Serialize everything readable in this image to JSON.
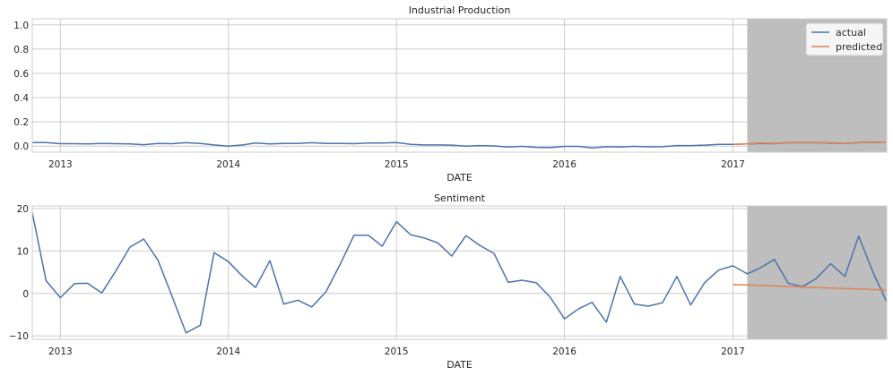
{
  "chart_data": [
    {
      "type": "line",
      "title": "Industrial Production",
      "xlabel": "DATE",
      "ylabel": "",
      "xlim": [
        "2012-11-01",
        "2017-12-01"
      ],
      "ylim": [
        -0.05,
        1.05
      ],
      "x_ticks": [
        "2013",
        "2014",
        "2015",
        "2016",
        "2017"
      ],
      "y_ticks": [
        "0.0",
        "0.2",
        "0.4",
        "0.6",
        "0.8",
        "1.0"
      ],
      "grid": true,
      "legend": "top-right",
      "shaded_region": {
        "start": "2017-02-01",
        "end": "2017-12-01",
        "color": "#bebebe"
      },
      "series": [
        {
          "name": "actual",
          "color": "#4c72b0",
          "points": [
            [
              "2012-11-01",
              0.03
            ],
            [
              "2012-12-01",
              0.03
            ],
            [
              "2013-01-01",
              0.02
            ],
            [
              "2013-02-01",
              0.02
            ],
            [
              "2013-03-01",
              0.018
            ],
            [
              "2013-04-01",
              0.022
            ],
            [
              "2013-05-01",
              0.02
            ],
            [
              "2013-06-01",
              0.018
            ],
            [
              "2013-07-01",
              0.012
            ],
            [
              "2013-08-01",
              0.022
            ],
            [
              "2013-09-01",
              0.02
            ],
            [
              "2013-10-01",
              0.028
            ],
            [
              "2013-11-01",
              0.022
            ],
            [
              "2013-12-01",
              0.01
            ],
            [
              "2014-01-01",
              0.0
            ],
            [
              "2014-02-01",
              0.01
            ],
            [
              "2014-03-01",
              0.025
            ],
            [
              "2014-04-01",
              0.018
            ],
            [
              "2014-05-01",
              0.022
            ],
            [
              "2014-06-01",
              0.022
            ],
            [
              "2014-07-01",
              0.028
            ],
            [
              "2014-08-01",
              0.022
            ],
            [
              "2014-09-01",
              0.022
            ],
            [
              "2014-10-01",
              0.02
            ],
            [
              "2014-11-01",
              0.025
            ],
            [
              "2014-12-01",
              0.025
            ],
            [
              "2015-01-01",
              0.03
            ],
            [
              "2015-02-01",
              0.015
            ],
            [
              "2015-03-01",
              0.01
            ],
            [
              "2015-04-01",
              0.01
            ],
            [
              "2015-05-01",
              0.008
            ],
            [
              "2015-06-01",
              0.0
            ],
            [
              "2015-07-01",
              0.005
            ],
            [
              "2015-08-01",
              0.002
            ],
            [
              "2015-09-01",
              -0.008
            ],
            [
              "2015-10-01",
              -0.002
            ],
            [
              "2015-11-01",
              -0.01
            ],
            [
              "2015-12-01",
              -0.012
            ],
            [
              "2016-01-01",
              -0.002
            ],
            [
              "2016-02-01",
              -0.002
            ],
            [
              "2016-03-01",
              -0.015
            ],
            [
              "2016-04-01",
              -0.005
            ],
            [
              "2016-05-01",
              -0.008
            ],
            [
              "2016-06-01",
              -0.002
            ],
            [
              "2016-07-01",
              -0.006
            ],
            [
              "2016-08-01",
              -0.005
            ],
            [
              "2016-09-01",
              0.005
            ],
            [
              "2016-10-01",
              0.005
            ],
            [
              "2016-11-01",
              0.008
            ],
            [
              "2016-12-01",
              0.015
            ],
            [
              "2017-01-01",
              0.015
            ],
            [
              "2017-02-01",
              0.018
            ],
            [
              "2017-03-01",
              0.022
            ],
            [
              "2017-04-01",
              0.02
            ],
            [
              "2017-05-01",
              0.03
            ],
            [
              "2017-06-01",
              0.028
            ],
            [
              "2017-07-01",
              0.03
            ],
            [
              "2017-08-01",
              0.025
            ],
            [
              "2017-09-01",
              0.022
            ],
            [
              "2017-10-01",
              0.03
            ],
            [
              "2017-11-01",
              0.032
            ],
            [
              "2017-12-01",
              0.03
            ]
          ]
        },
        {
          "name": "predicted",
          "color": "#dd8452",
          "points": [
            [
              "2017-01-01",
              0.015
            ],
            [
              "2017-02-01",
              0.018
            ],
            [
              "2017-03-01",
              0.025
            ],
            [
              "2017-04-01",
              0.022
            ],
            [
              "2017-05-01",
              0.03
            ],
            [
              "2017-06-01",
              0.028
            ],
            [
              "2017-07-01",
              0.03
            ],
            [
              "2017-08-01",
              0.028
            ],
            [
              "2017-09-01",
              0.022
            ],
            [
              "2017-10-01",
              0.028
            ],
            [
              "2017-11-01",
              0.03
            ],
            [
              "2017-12-01",
              0.03
            ]
          ]
        }
      ]
    },
    {
      "type": "line",
      "title": "Sentiment",
      "xlabel": "DATE",
      "ylabel": "",
      "xlim": [
        "2012-11-01",
        "2017-12-01"
      ],
      "ylim": [
        -10.8,
        20.6
      ],
      "x_ticks": [
        "2013",
        "2014",
        "2015",
        "2016",
        "2017"
      ],
      "y_ticks": [
        "−10",
        "0",
        "10",
        "20"
      ],
      "y_tick_values": [
        -10,
        0,
        10,
        20
      ],
      "grid": true,
      "shaded_region": {
        "start": "2017-02-01",
        "end": "2017-12-01",
        "color": "#bebebe"
      },
      "series": [
        {
          "name": "actual",
          "color": "#4c72b0",
          "points": [
            [
              "2012-11-01",
              19.0
            ],
            [
              "2012-12-01",
              3.0
            ],
            [
              "2013-01-01",
              -1.0
            ],
            [
              "2013-02-01",
              2.3
            ],
            [
              "2013-03-01",
              2.4
            ],
            [
              "2013-04-01",
              0.1
            ],
            [
              "2013-05-01",
              5.2
            ],
            [
              "2013-06-01",
              10.9
            ],
            [
              "2013-07-01",
              12.8
            ],
            [
              "2013-08-01",
              7.8
            ],
            [
              "2013-09-01",
              -0.8
            ],
            [
              "2013-10-01",
              -9.3
            ],
            [
              "2013-11-01",
              -7.5
            ],
            [
              "2013-12-01",
              9.6
            ],
            [
              "2014-01-01",
              7.5
            ],
            [
              "2014-02-01",
              4.0
            ],
            [
              "2014-03-01",
              1.4
            ],
            [
              "2014-04-01",
              7.7
            ],
            [
              "2014-05-01",
              -2.5
            ],
            [
              "2014-06-01",
              -1.6
            ],
            [
              "2014-07-01",
              -3.2
            ],
            [
              "2014-08-01",
              0.4
            ],
            [
              "2014-09-01",
              6.9
            ],
            [
              "2014-10-01",
              13.7
            ],
            [
              "2014-11-01",
              13.7
            ],
            [
              "2014-12-01",
              11.1
            ],
            [
              "2015-01-01",
              16.9
            ],
            [
              "2015-02-01",
              13.8
            ],
            [
              "2015-03-01",
              13.1
            ],
            [
              "2015-04-01",
              11.9
            ],
            [
              "2015-05-01",
              8.8
            ],
            [
              "2015-06-01",
              13.6
            ],
            [
              "2015-07-01",
              11.3
            ],
            [
              "2015-08-01",
              9.4
            ],
            [
              "2015-09-01",
              2.6
            ],
            [
              "2015-10-01",
              3.1
            ],
            [
              "2015-11-01",
              2.5
            ],
            [
              "2015-12-01",
              -0.9
            ],
            [
              "2016-01-01",
              -6.0
            ],
            [
              "2016-02-01",
              -3.6
            ],
            [
              "2016-03-01",
              -2.1
            ],
            [
              "2016-04-01",
              -6.8
            ],
            [
              "2016-05-01",
              4.0
            ],
            [
              "2016-06-01",
              -2.5
            ],
            [
              "2016-07-01",
              -3.0
            ],
            [
              "2016-08-01",
              -2.2
            ],
            [
              "2016-09-01",
              4.0
            ],
            [
              "2016-10-01",
              -2.7
            ],
            [
              "2016-11-01",
              2.6
            ],
            [
              "2016-12-01",
              5.5
            ],
            [
              "2017-01-01",
              6.5
            ],
            [
              "2017-02-01",
              4.6
            ],
            [
              "2017-03-01",
              6.0
            ],
            [
              "2017-04-01",
              8.0
            ],
            [
              "2017-05-01",
              2.4
            ],
            [
              "2017-06-01",
              1.6
            ],
            [
              "2017-07-01",
              3.5
            ],
            [
              "2017-08-01",
              7.0
            ],
            [
              "2017-09-01",
              4.0
            ],
            [
              "2017-10-01",
              13.5
            ],
            [
              "2017-11-01",
              5.0
            ],
            [
              "2017-12-01",
              -2.0
            ]
          ]
        },
        {
          "name": "predicted",
          "color": "#dd8452",
          "points": [
            [
              "2017-01-01",
              2.1
            ],
            [
              "2017-12-01",
              0.8
            ]
          ]
        }
      ]
    }
  ]
}
